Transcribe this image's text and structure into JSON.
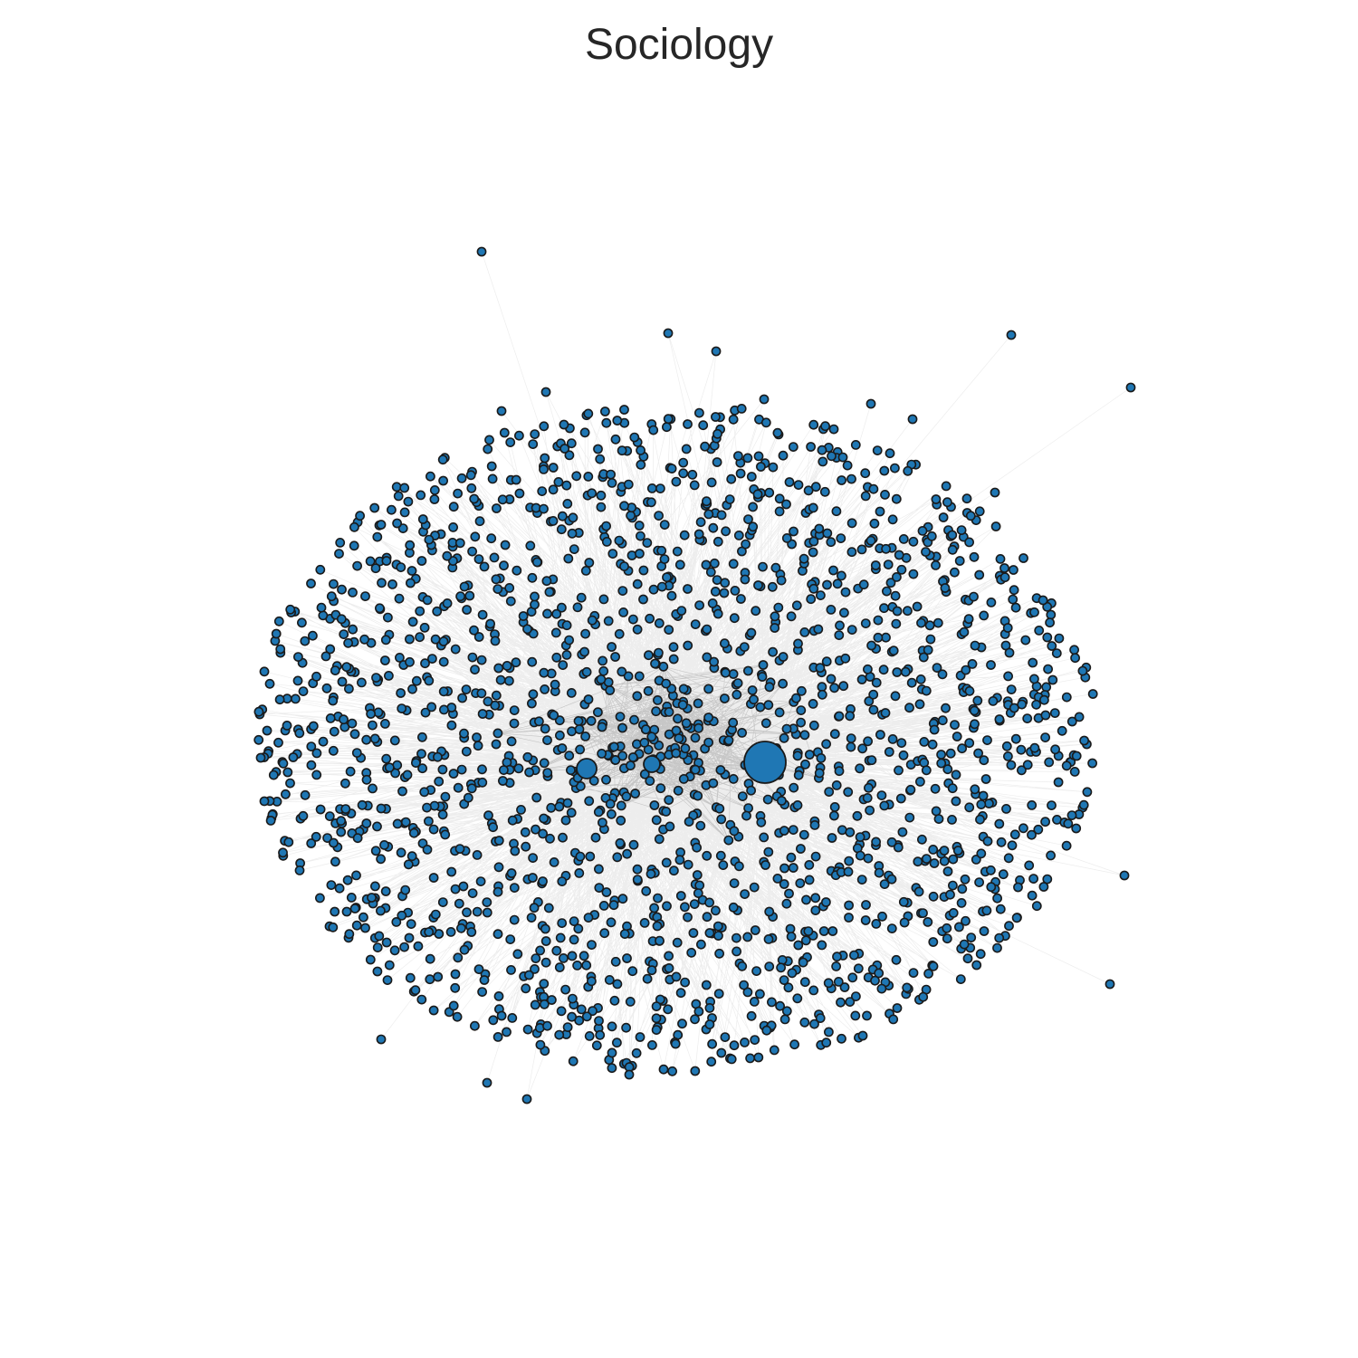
{
  "figure": {
    "title": "Sociology"
  },
  "graph": {
    "node_color": "#1f77b4",
    "node_outline_color": "#1a1a1a",
    "edge_color": "#cccccc",
    "hubs": [
      {
        "id": "hub-1",
        "rank": 1
      },
      {
        "id": "hub-2",
        "rank": 2
      },
      {
        "id": "hub-3",
        "rank": 3
      }
    ]
  }
}
